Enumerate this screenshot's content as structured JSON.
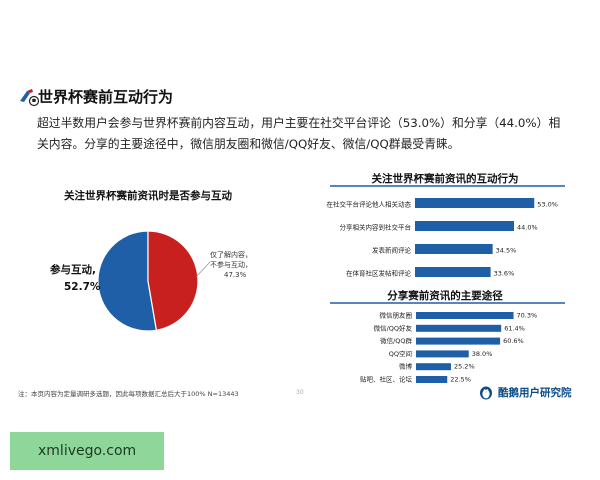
{
  "header": {
    "title": "世界杯赛前互动行为",
    "summary": "超过半数用户会参与世界杯赛前内容互动，用户主要在社交平台评论（53.0%）和分享（44.0%）相关内容。分享的主要途径中，微信朋友圈和微信/QQ好友、微信/QQ群最受青睐。"
  },
  "pie_labels": {
    "main_name": "参与互动,",
    "main_value": "52.7%",
    "minor_line1": "仅了解内容，",
    "minor_line2": "不参与互动，",
    "minor_value": "47.3%"
  },
  "footer": {
    "note": "注：本页内容为定量调研多选题，因此每项数据汇总后大于100%  N=13443",
    "page_number": "30",
    "brand": "酷鹅用户研究院"
  },
  "watermark": "xmlivego.com",
  "colors": {
    "pie_participate": "#1f5fa8",
    "pie_browse": "#c8201e",
    "bar_fill": "#1f5fa8",
    "title_underline": "#1f5fa8",
    "brand": "#0d4c8c"
  },
  "icons": {
    "title": "football-icon",
    "brand": "penguin-logo-icon"
  },
  "chart_data": [
    {
      "type": "pie",
      "title": "关注世界杯赛前资讯时是否参与互动",
      "categories": [
        "参与互动",
        "仅了解内容，不参与互动"
      ],
      "values": [
        52.7,
        47.3
      ],
      "unit": "%"
    },
    {
      "type": "bar",
      "orientation": "horizontal",
      "title": "关注世界杯赛前资讯的互动行为",
      "categories": [
        "在社交平台评论他人相关动态",
        "分享相关内容到社交平台",
        "发表新闻评论",
        "在体育社区发帖和评论"
      ],
      "values": [
        53.0,
        44.0,
        34.5,
        33.6
      ],
      "labels": [
        "53.0%",
        "44.0%",
        "34.5%",
        "33.6%"
      ],
      "unit": "%",
      "xlim": [
        0,
        60
      ]
    },
    {
      "type": "bar",
      "orientation": "horizontal",
      "title": "分享赛前资讯的主要途径",
      "categories": [
        "微信朋友圈",
        "微信/QQ好友",
        "微信/QQ群",
        "QQ空间",
        "微博",
        "贴吧、社区、论坛"
      ],
      "values": [
        70.3,
        61.4,
        60.6,
        38.0,
        25.2,
        22.5
      ],
      "labels": [
        "70.3%",
        "61.4%",
        "60.6%",
        "38.0%",
        "25.2%",
        "22.5%"
      ],
      "unit": "%",
      "xlim": [
        0,
        80
      ]
    }
  ]
}
